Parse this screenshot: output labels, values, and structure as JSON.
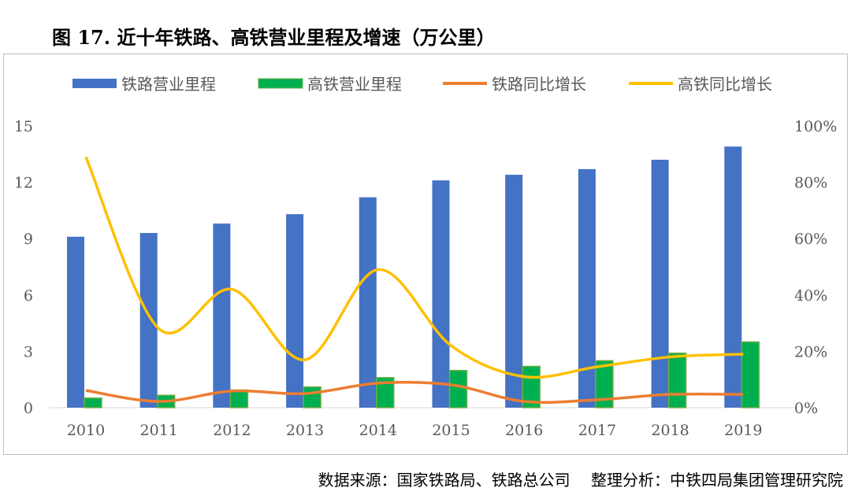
{
  "title": "图 17. 近十年铁路、高铁营业里程及增速（万公里）",
  "source": "数据来源：国家铁路局、铁路总公司　 整理分析：中铁四局集团管理研究院",
  "chart_data": {
    "type": "bar+line",
    "categories": [
      "2010",
      "2011",
      "2012",
      "2013",
      "2014",
      "2015",
      "2016",
      "2017",
      "2018",
      "2019"
    ],
    "left_axis": {
      "range": [
        0,
        15
      ],
      "ticks": [
        "0",
        "3",
        "6",
        "9",
        "12",
        "15"
      ]
    },
    "right_axis": {
      "range": [
        0,
        100
      ],
      "ticks": [
        "0%",
        "20%",
        "40%",
        "60%",
        "80%",
        "100%"
      ]
    },
    "grid": false,
    "legend": "top",
    "series": [
      {
        "name": "铁路营业里程",
        "type": "bar",
        "axis": "left",
        "color": "#4472C4",
        "values": [
          9.1,
          9.3,
          9.8,
          10.3,
          11.2,
          12.1,
          12.4,
          12.7,
          13.2,
          13.9
        ]
      },
      {
        "name": "高铁营业里程",
        "type": "bar",
        "axis": "left",
        "color": "#00B050",
        "values": [
          0.51,
          0.66,
          0.94,
          1.1,
          1.6,
          1.98,
          2.2,
          2.5,
          2.9,
          3.5
        ]
      },
      {
        "name": "铁路同比增长",
        "type": "line",
        "axis": "right",
        "color": "#ED7D31",
        "values": [
          6.1,
          2.2,
          5.9,
          5.0,
          8.7,
          8.1,
          2.2,
          2.8,
          4.7,
          4.7
        ]
      },
      {
        "name": "高铁同比增长",
        "type": "line",
        "axis": "right",
        "color": "#FFC000",
        "values": [
          89,
          28,
          42,
          17,
          49,
          22,
          11,
          14.5,
          18,
          19
        ]
      }
    ]
  }
}
